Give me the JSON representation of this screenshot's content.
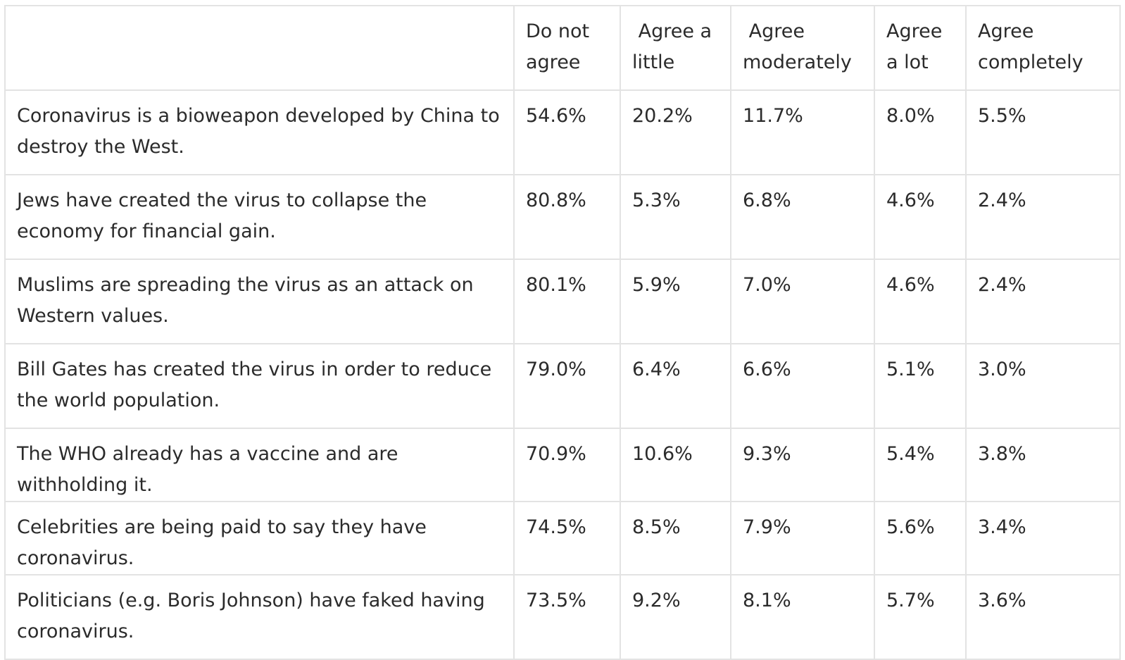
{
  "table": {
    "headers": [
      "",
      "Do not agree",
      " Agree a little",
      " Agree moderately",
      "Agree a lot",
      "Agree completely"
    ],
    "rows": [
      {
        "statement": "Coronavirus is a bioweapon developed by China to destroy the West.",
        "values": [
          "54.6%",
          "20.2%",
          "11.7%",
          "8.0%",
          "5.5%"
        ]
      },
      {
        "statement": "Jews have created the virus to collapse the economy for financial gain.",
        "values": [
          "80.8%",
          "5.3%",
          "6.8%",
          "4.6%",
          "2.4%"
        ]
      },
      {
        "statement": "Muslims are spreading the virus as an attack on Western values.",
        "values": [
          "80.1%",
          "5.9%",
          "7.0%",
          "4.6%",
          "2.4%"
        ]
      },
      {
        "statement": "Bill Gates has created the virus in order to reduce the world population.",
        "values": [
          "79.0%",
          "6.4%",
          "6.6%",
          "5.1%",
          "3.0%"
        ]
      },
      {
        "statement": "The WHO already has a vaccine and are withholding it.",
        "values": [
          "70.9%",
          "10.6%",
          "9.3%",
          "5.4%",
          "3.8%"
        ]
      },
      {
        "statement": "Celebrities are being paid to say they have coronavirus.",
        "values": [
          "74.5%",
          "8.5%",
          "7.9%",
          "5.6%",
          "3.4%"
        ]
      },
      {
        "statement": "Politicians (e.g. Boris Johnson) have faked having coronavirus.",
        "values": [
          "73.5%",
          "9.2%",
          "8.1%",
          "5.7%",
          "3.6%"
        ]
      }
    ]
  }
}
